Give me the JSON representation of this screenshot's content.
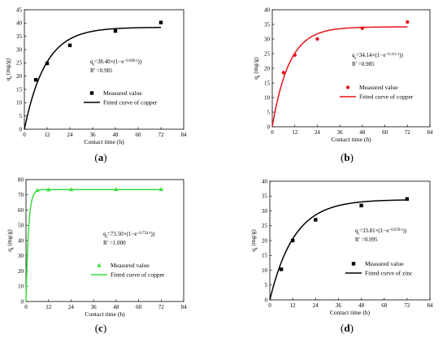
{
  "chart_data": [
    {
      "type": "scatter",
      "panel_label": "(a)",
      "xlabel": "Contact time (h)",
      "ylabel": "qt (mg/g)",
      "xlim": [
        0,
        84
      ],
      "ylim": [
        0,
        45
      ],
      "xticks": [
        0,
        12,
        24,
        36,
        48,
        60,
        72,
        84
      ],
      "yticks": [
        0,
        5,
        10,
        15,
        20,
        25,
        30,
        35,
        40,
        45
      ],
      "equation": "qt=38.40×(1−e^(−0.090·t))",
      "r2": "R² =0.981",
      "qe": 38.4,
      "k": 0.09,
      "marker": "square",
      "color": "#000000",
      "series": [
        {
          "name": "Measured value",
          "x": [
            6,
            12,
            24,
            48,
            72
          ],
          "y": [
            18.6,
            24.8,
            31.6,
            37.0,
            40.2
          ]
        },
        {
          "name": "Fitted curve of copper"
        }
      ]
    },
    {
      "type": "scatter",
      "panel_label": "(b)",
      "xlabel": "Contact time (h)",
      "ylabel": "qt (mg/g)",
      "xlim": [
        0,
        84
      ],
      "ylim": [
        0,
        40
      ],
      "xticks": [
        0,
        12,
        24,
        36,
        48,
        60,
        72,
        84
      ],
      "yticks": [
        0,
        5,
        10,
        15,
        20,
        25,
        30,
        35,
        40
      ],
      "equation": "qt=34.14×(1−e^(−0.111·t))",
      "r2": "R² =0.985",
      "qe": 34.14,
      "k": 0.111,
      "marker": "circle",
      "color": "#e8141c",
      "series": [
        {
          "name": "Measured value",
          "x": [
            6,
            12,
            24,
            48,
            72
          ],
          "y": [
            18.5,
            24.5,
            30.0,
            33.7,
            35.8
          ]
        },
        {
          "name": "Fitted curve of copper"
        }
      ]
    },
    {
      "type": "scatter",
      "panel_label": "(c)",
      "xlabel": "Contact time (h)",
      "ylabel": "qt (mg/g)",
      "xlim": [
        0,
        84
      ],
      "ylim": [
        0,
        80
      ],
      "xticks": [
        0,
        12,
        24,
        36,
        48,
        60,
        72,
        84
      ],
      "yticks": [
        0,
        10,
        20,
        30,
        40,
        50,
        60,
        70,
        80
      ],
      "equation": "qt=73.50×(1−e^(−0.754·t))",
      "r2": "R² =1.000",
      "qe": 73.5,
      "k": 0.754,
      "marker": "triangle",
      "color": "#3ddc3d",
      "series": [
        {
          "name": "Measured value",
          "x": [
            6,
            12,
            24,
            48,
            72
          ],
          "y": [
            73.0,
            73.4,
            73.5,
            73.6,
            73.6
          ]
        },
        {
          "name": "Fitted curve of copper"
        }
      ]
    },
    {
      "type": "scatter",
      "panel_label": "(d)",
      "xlabel": "Contact time (h)",
      "ylabel": "qt (mg/g)",
      "xlim": [
        0,
        84
      ],
      "ylim": [
        0,
        40
      ],
      "xticks": [
        0,
        12,
        24,
        36,
        48,
        60,
        72,
        84
      ],
      "yticks": [
        0,
        5,
        10,
        15,
        20,
        25,
        30,
        35,
        40
      ],
      "equation": "qt=33.81×(1−e^(−0.078·t))",
      "r2": "R² =0.995",
      "qe": 33.81,
      "k": 0.078,
      "marker": "square",
      "color": "#000000",
      "series": [
        {
          "name": "Measured value",
          "x": [
            6,
            12,
            24,
            48,
            72
          ],
          "y": [
            10.3,
            20.0,
            27.0,
            31.8,
            34.0
          ]
        },
        {
          "name": "Fitted curve of zinc"
        }
      ]
    }
  ]
}
